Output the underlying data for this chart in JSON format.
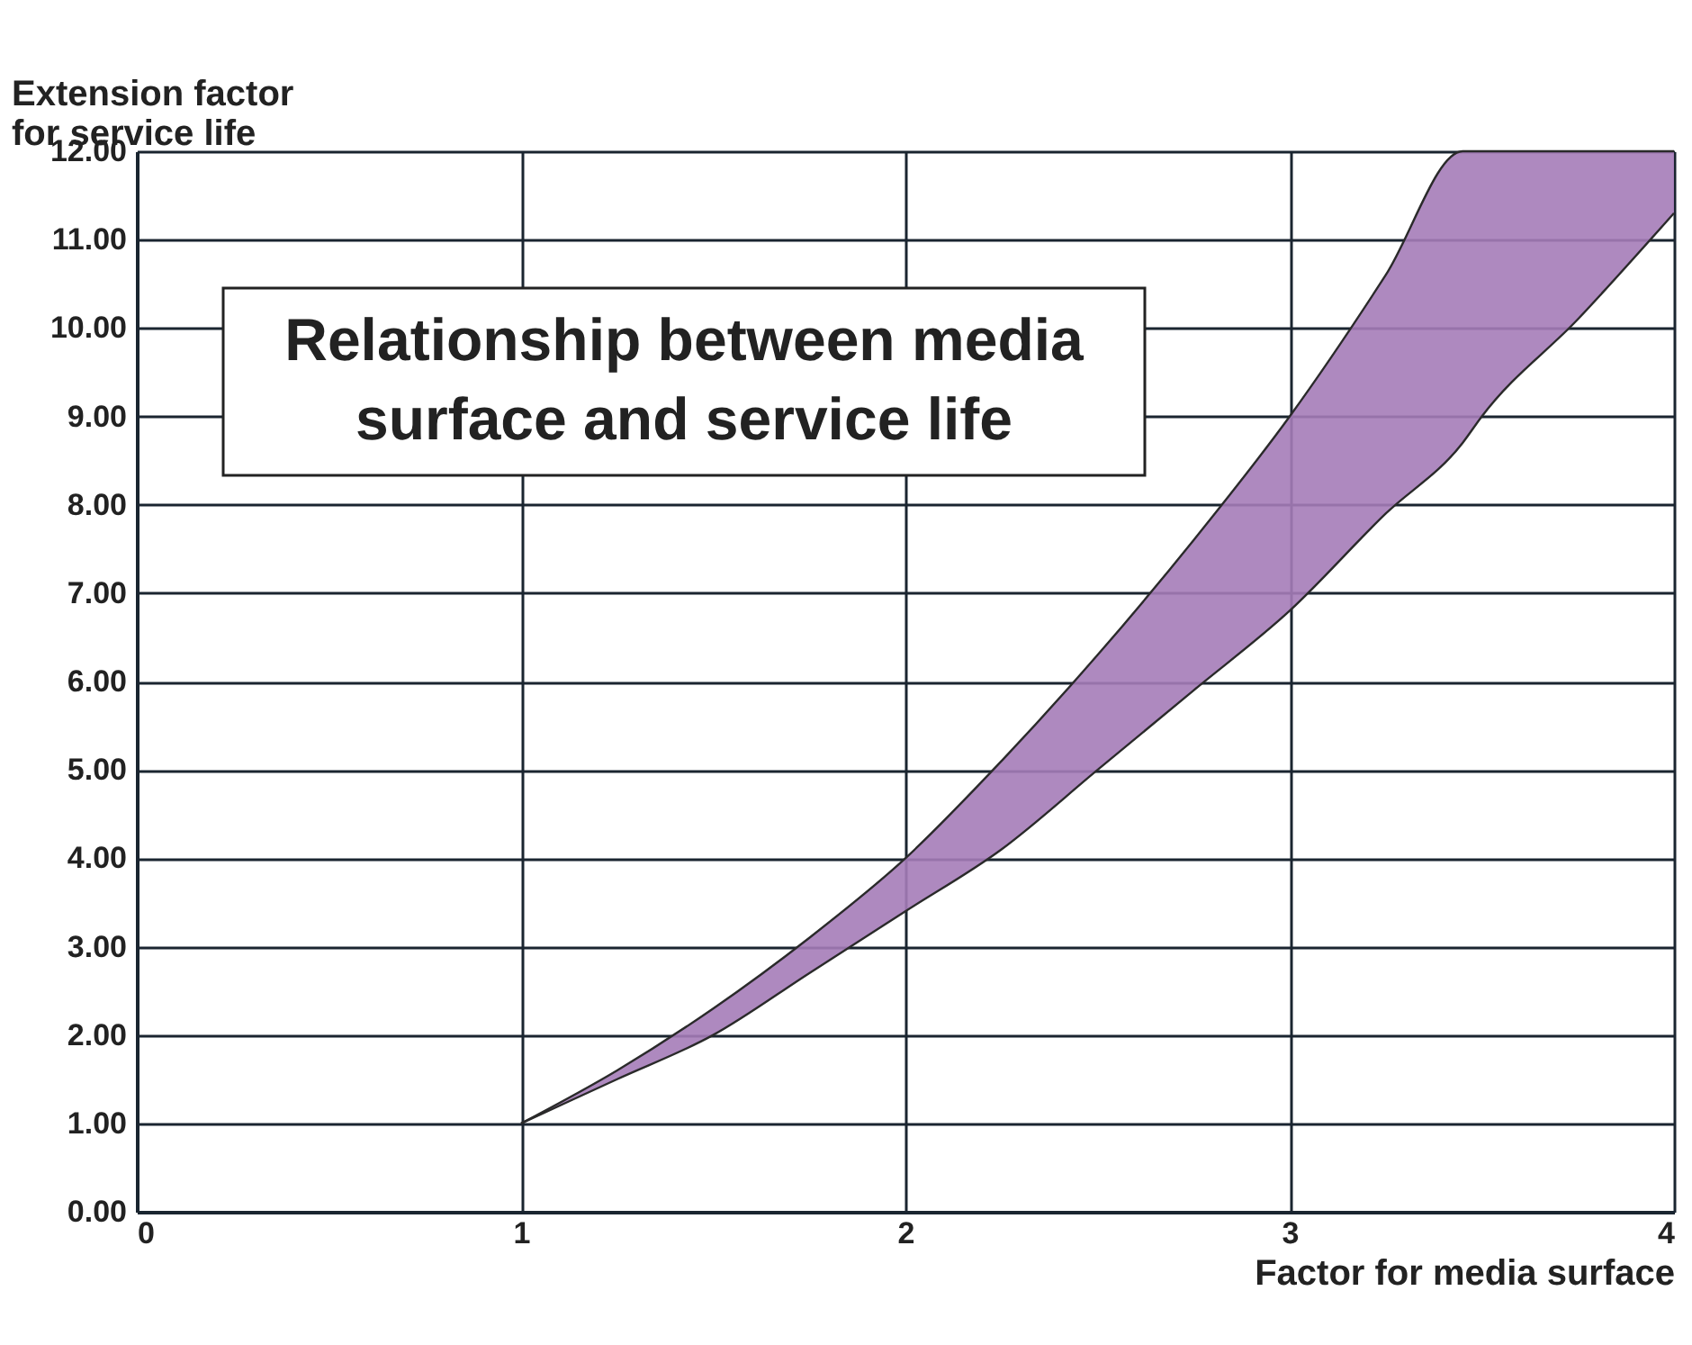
{
  "chart_data": {
    "type": "area",
    "title": "Relationship between media\nsurface and service life",
    "xlabel": "Factor for media surface",
    "ylabel": "Extension factor\nfor service life",
    "x": [
      1,
      1.25,
      1.5,
      1.75,
      2,
      2.25,
      2.5,
      2.75,
      3,
      3.25,
      3.45,
      3.5,
      3.75,
      4
    ],
    "series": [
      {
        "type": "line",
        "color": "#2a2a2a",
        "values": [
          1,
          1.5,
          2.0,
          2.7,
          3.4,
          4.1,
          5.0,
          5.9,
          6.8,
          7.9,
          8.7,
          9.0,
          10.1,
          11.3
        ]
      },
      {
        "color": "#a57cb8",
        "values": [
          1,
          1.6,
          2.3,
          3.1,
          4.0,
          5.1,
          6.3,
          7.6,
          9.0,
          10.6,
          12,
          12,
          12,
          12
        ]
      }
    ],
    "xlim": [
      0,
      4
    ],
    "xticks": [
      0,
      1,
      2,
      3,
      4
    ],
    "ylim": [
      0,
      12
    ],
    "yticks": [
      {
        "value": 0,
        "label": "0.00"
      },
      {
        "value": 1,
        "label": "1.00"
      },
      {
        "value": 2,
        "label": "2.00"
      },
      {
        "value": 3,
        "label": "3.00"
      },
      {
        "value": 4,
        "label": "4.00"
      },
      {
        "value": 5,
        "label": "5.00"
      },
      {
        "value": 6,
        "label": "6.00"
      },
      {
        "value": 7,
        "label": "7.00"
      },
      {
        "value": 8,
        "label": "8.00"
      },
      {
        "value": 9,
        "label": "9.00"
      },
      {
        "value": 10,
        "label": "10.00"
      },
      {
        "value": 11,
        "label": "11.00"
      },
      {
        "value": 12,
        "label": "12.00"
      }
    ],
    "grid": true
  }
}
